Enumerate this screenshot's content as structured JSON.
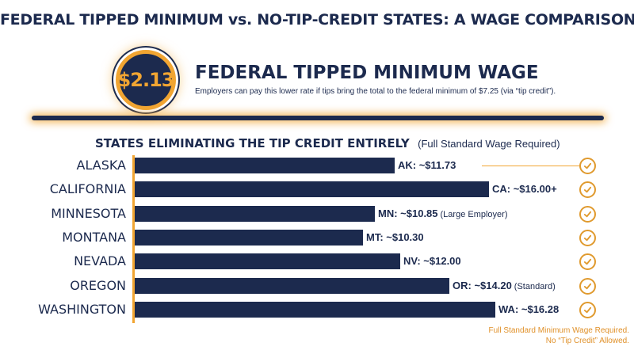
{
  "title": "FEDERAL TIPPED MINIMUM vs. NO-TIP-CREDIT STATES: A WAGE COMPARISON",
  "federal": {
    "badge_value": "$2.13",
    "title": "FEDERAL TIPPED MINIMUM WAGE",
    "description": "Employers can pay this lower rate if tips bring the total to the federal minimum of $7.25 (via “tip credit”)."
  },
  "chart_heading": {
    "main": "STATES ELIMINATING THE TIP CREDIT ENTIRELY",
    "sub": "(Full Standard Wage Required)"
  },
  "footnote": {
    "line1": "Full Standard Minimum Wage Required.",
    "line2": "No “Tip Credit” Allowed."
  },
  "colors": {
    "navy": "#1c2a4e",
    "accent": "#f1a532",
    "check": "#e09a2e"
  },
  "chart_data": {
    "type": "bar",
    "orientation": "horizontal",
    "categories": [
      "ALASKA",
      "CALIFORNIA",
      "MINNESOTA",
      "MONTANA",
      "NEVADA",
      "OREGON",
      "WASHINGTON"
    ],
    "values": [
      11.73,
      16.0,
      10.85,
      10.3,
      12.0,
      14.2,
      16.28
    ],
    "data_labels": [
      "AK: ~$11.73",
      "CA: ~$16.00+",
      "MN: ~$10.85",
      "MT: ~$10.30",
      "NV: ~$12.00",
      "OR: ~$14.20",
      "WA: ~$16.28"
    ],
    "label_notes": [
      "",
      "",
      "(Large Employer)",
      "",
      "",
      "(Standard)",
      ""
    ],
    "status_icon": "check-circle-icon",
    "grid": false,
    "title": "STATES ELIMINATING THE TIP CREDIT ENTIRELY"
  }
}
